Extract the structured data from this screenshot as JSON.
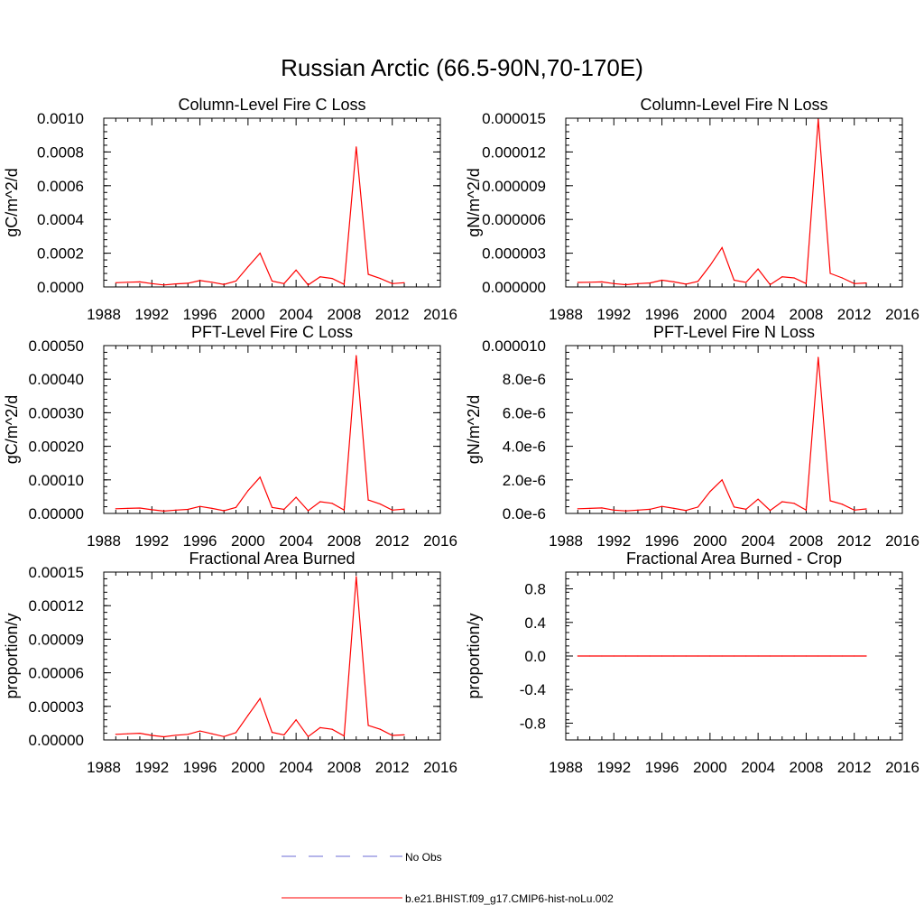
{
  "figure": {
    "title": "Russian Arctic (66.5-90N,70-170E)"
  },
  "legend": {
    "entries": [
      {
        "label": "No Obs",
        "color": "#6b6bd6",
        "style": "dashed"
      },
      {
        "label": "b.e21.BHIST.f09_g17.CMIP6-hist-noLu.002",
        "color": "#ff0000",
        "style": "solid"
      }
    ]
  },
  "chart_data": [
    {
      "type": "line",
      "title": "Column-Level Fire C Loss",
      "ylabel": "gC/m^2/d",
      "xlim": [
        1988,
        2016
      ],
      "ylim": [
        0,
        0.001
      ],
      "xticks": [
        "1988",
        "1992",
        "1996",
        "2000",
        "2004",
        "2008",
        "2012",
        "2016"
      ],
      "yticks": [
        {
          "value": 0,
          "label": "0.0000"
        },
        {
          "value": 0.0002,
          "label": "0.0002"
        },
        {
          "value": 0.0004,
          "label": "0.0004"
        },
        {
          "value": 0.0006,
          "label": "0.0006"
        },
        {
          "value": 0.0008,
          "label": "0.0008"
        },
        {
          "value": 0.001,
          "label": "0.0010"
        }
      ],
      "x": [
        1989,
        1990,
        1991,
        1992,
        1993,
        1994,
        1995,
        1996,
        1997,
        1998,
        1999,
        2000,
        2001,
        2002,
        2003,
        2004,
        2005,
        2006,
        2007,
        2008,
        2009,
        2010,
        2011,
        2012,
        2013
      ],
      "series": [
        {
          "name": "b.e21.BHIST.f09_g17.CMIP6-hist-noLu.002",
          "color": "#ff0000",
          "values": [
            2.5e-05,
            2.8e-05,
            3e-05,
            2e-05,
            1.2e-05,
            1.8e-05,
            2.2e-05,
            3.8e-05,
            2.8e-05,
            1.5e-05,
            3.5e-05,
            0.00012,
            0.0002,
            3.5e-05,
            2e-05,
            0.0001,
            1.2e-05,
            6e-05,
            5e-05,
            1.5e-05,
            0.00083,
            7.5e-05,
            5e-05,
            2e-05,
            2.5e-05
          ]
        }
      ]
    },
    {
      "type": "line",
      "title": "Column-Level Fire N Loss",
      "ylabel": "gN/m^2/d",
      "xlim": [
        1988,
        2016
      ],
      "ylim": [
        0,
        1.5e-05
      ],
      "xticks": [
        "1988",
        "1992",
        "1996",
        "2000",
        "2004",
        "2008",
        "2012",
        "2016"
      ],
      "yticks": [
        {
          "value": 0,
          "label": "0.000000"
        },
        {
          "value": 3e-06,
          "label": "0.000003"
        },
        {
          "value": 6e-06,
          "label": "0.000006"
        },
        {
          "value": 9e-06,
          "label": "0.000009"
        },
        {
          "value": 1.2e-05,
          "label": "0.000012"
        },
        {
          "value": 1.5e-05,
          "label": "0.000015"
        }
      ],
      "x": [
        1989,
        1990,
        1991,
        1992,
        1993,
        1994,
        1995,
        1996,
        1997,
        1998,
        1999,
        2000,
        2001,
        2002,
        2003,
        2004,
        2005,
        2006,
        2007,
        2008,
        2009,
        2010,
        2011,
        2012,
        2013
      ],
      "series": [
        {
          "name": "b.e21.BHIST.f09_g17.CMIP6-hist-noLu.002",
          "color": "#ff0000",
          "values": [
            4e-07,
            4.2e-07,
            4.5e-07,
            3e-07,
            2e-07,
            3e-07,
            3.5e-07,
            6e-07,
            4.5e-07,
            2.5e-07,
            5e-07,
            1.9e-06,
            3.5e-06,
            6e-07,
            4e-07,
            1.6e-06,
            2e-07,
            9e-07,
            8e-07,
            3e-07,
            1.49e-05,
            1.2e-06,
            8e-07,
            3e-07,
            3.5e-07
          ]
        }
      ]
    },
    {
      "type": "line",
      "title": "PFT-Level Fire C Loss",
      "ylabel": "gC/m^2/d",
      "xlim": [
        1988,
        2016
      ],
      "ylim": [
        0,
        0.0005
      ],
      "xticks": [
        "1988",
        "1992",
        "1996",
        "2000",
        "2004",
        "2008",
        "2012",
        "2016"
      ],
      "yticks": [
        {
          "value": 0,
          "label": "0.00000"
        },
        {
          "value": 0.0001,
          "label": "0.00010"
        },
        {
          "value": 0.0002,
          "label": "0.00020"
        },
        {
          "value": 0.0003,
          "label": "0.00030"
        },
        {
          "value": 0.0004,
          "label": "0.00040"
        },
        {
          "value": 0.0005,
          "label": "0.00050"
        }
      ],
      "x": [
        1989,
        1990,
        1991,
        1992,
        1993,
        1994,
        1995,
        1996,
        1997,
        1998,
        1999,
        2000,
        2001,
        2002,
        2003,
        2004,
        2005,
        2006,
        2007,
        2008,
        2009,
        2010,
        2011,
        2012,
        2013
      ],
      "series": [
        {
          "name": "b.e21.BHIST.f09_g17.CMIP6-hist-noLu.002",
          "color": "#ff0000",
          "values": [
            1.4e-05,
            1.5e-05,
            1.6e-05,
            1.1e-05,
            7e-06,
            1e-05,
            1.2e-05,
            2.1e-05,
            1.5e-05,
            8e-06,
            1.8e-05,
            6.8e-05,
            0.000108,
            1.8e-05,
            1.2e-05,
            4.8e-05,
            8e-06,
            3.5e-05,
            3e-05,
            1e-05,
            0.00047,
            4e-05,
            2.8e-05,
            1e-05,
            1.3e-05
          ]
        }
      ]
    },
    {
      "type": "line",
      "title": "PFT-Level Fire N Loss",
      "ylabel": "gN/m^2/d",
      "xlim": [
        1988,
        2016
      ],
      "ylim": [
        0,
        1e-05
      ],
      "xticks": [
        "1988",
        "1992",
        "1996",
        "2000",
        "2004",
        "2008",
        "2012",
        "2016"
      ],
      "yticks": [
        {
          "value": 0,
          "label": "0.0e-6"
        },
        {
          "value": 2e-06,
          "label": "2.0e-6"
        },
        {
          "value": 4e-06,
          "label": "4.0e-6"
        },
        {
          "value": 6e-06,
          "label": "6.0e-6"
        },
        {
          "value": 8e-06,
          "label": "8.0e-6"
        },
        {
          "value": 1e-05,
          "label": "0.000010"
        }
      ],
      "x": [
        1989,
        1990,
        1991,
        1992,
        1993,
        1994,
        1995,
        1996,
        1997,
        1998,
        1999,
        2000,
        2001,
        2002,
        2003,
        2004,
        2005,
        2006,
        2007,
        2008,
        2009,
        2010,
        2011,
        2012,
        2013
      ],
      "series": [
        {
          "name": "b.e21.BHIST.f09_g17.CMIP6-hist-noLu.002",
          "color": "#ff0000",
          "values": [
            2.8e-07,
            3e-07,
            3.3e-07,
            2e-07,
            1.5e-07,
            2e-07,
            2.5e-07,
            4.2e-07,
            3e-07,
            1.8e-07,
            3.8e-07,
            1.3e-06,
            2e-06,
            3.8e-07,
            2.5e-07,
            8.5e-07,
            1.8e-07,
            7e-07,
            6e-07,
            2e-07,
            9.3e-06,
            7.5e-07,
            5.5e-07,
            2e-07,
            2.7e-07
          ]
        }
      ]
    },
    {
      "type": "line",
      "title": "Fractional Area Burned",
      "ylabel": "proportion/y",
      "xlim": [
        1988,
        2016
      ],
      "ylim": [
        0,
        0.00015
      ],
      "xticks": [
        "1988",
        "1992",
        "1996",
        "2000",
        "2004",
        "2008",
        "2012",
        "2016"
      ],
      "yticks": [
        {
          "value": 0,
          "label": "0.00000"
        },
        {
          "value": 3e-05,
          "label": "0.00003"
        },
        {
          "value": 6e-05,
          "label": "0.00006"
        },
        {
          "value": 9e-05,
          "label": "0.00009"
        },
        {
          "value": 0.00012,
          "label": "0.00012"
        },
        {
          "value": 0.00015,
          "label": "0.00015"
        }
      ],
      "x": [
        1989,
        1990,
        1991,
        1992,
        1993,
        1994,
        1995,
        1996,
        1997,
        1998,
        1999,
        2000,
        2001,
        2002,
        2003,
        2004,
        2005,
        2006,
        2007,
        2008,
        2009,
        2010,
        2011,
        2012,
        2013
      ],
      "series": [
        {
          "name": "b.e21.BHIST.f09_g17.CMIP6-hist-noLu.002",
          "color": "#ff0000",
          "values": [
            5e-06,
            5.5e-06,
            6e-06,
            4e-06,
            2.8e-06,
            4.2e-06,
            5e-06,
            8e-06,
            5.5e-06,
            3e-06,
            6.5e-06,
            2.2e-05,
            3.7e-05,
            6.8e-06,
            4.5e-06,
            1.8e-05,
            3e-06,
            1.1e-05,
            9.5e-06,
            3.5e-06,
            0.000146,
            1.3e-05,
            9.5e-06,
            4e-06,
            4.5e-06
          ]
        }
      ]
    },
    {
      "type": "line",
      "title": "Fractional Area Burned - Crop",
      "ylabel": "proportion/y",
      "xlim": [
        1988,
        2016
      ],
      "ylim": [
        -1,
        1
      ],
      "xticks": [
        "1988",
        "1992",
        "1996",
        "2000",
        "2004",
        "2008",
        "2012",
        "2016"
      ],
      "yticks": [
        {
          "value": -0.8,
          "label": "-0.8"
        },
        {
          "value": -0.4,
          "label": "-0.4"
        },
        {
          "value": 0,
          "label": "0.0"
        },
        {
          "value": 0.4,
          "label": "0.4"
        },
        {
          "value": 0.8,
          "label": "0.8"
        }
      ],
      "x": [
        1989,
        1990,
        1991,
        1992,
        1993,
        1994,
        1995,
        1996,
        1997,
        1998,
        1999,
        2000,
        2001,
        2002,
        2003,
        2004,
        2005,
        2006,
        2007,
        2008,
        2009,
        2010,
        2011,
        2012,
        2013
      ],
      "series": [
        {
          "name": "b.e21.BHIST.f09_g17.CMIP6-hist-noLu.002",
          "color": "#ff0000",
          "values": [
            0,
            0,
            0,
            0,
            0,
            0,
            0,
            0,
            0,
            0,
            0,
            0,
            0,
            0,
            0,
            0,
            0,
            0,
            0,
            0,
            0,
            0,
            0,
            0,
            0
          ]
        }
      ]
    }
  ]
}
